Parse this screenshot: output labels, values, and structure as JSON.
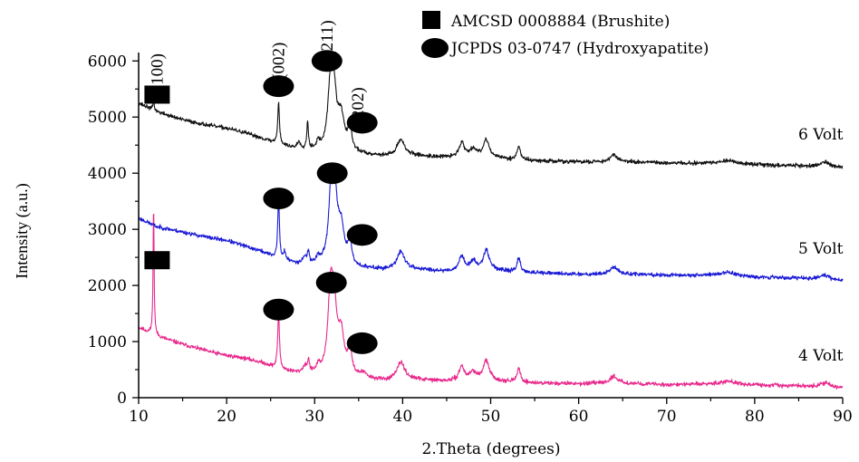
{
  "chart_data": {
    "type": "line",
    "title": "",
    "xlabel": "2.Theta (degrees)",
    "ylabel": "Intensity (a.u.)",
    "xlim": [
      10,
      90
    ],
    "ylim": [
      0,
      6000
    ],
    "x_ticks": [
      "10",
      "20",
      "30",
      "40",
      "50",
      "60",
      "70",
      "80",
      "90"
    ],
    "y_ticks": [
      "0",
      "1000",
      "2000",
      "3000",
      "4000",
      "5000",
      "6000"
    ],
    "legend": {
      "position": "top-right",
      "entries": [
        {
          "marker": "square",
          "label": "AMCSD 0008884 (Brushite)"
        },
        {
          "marker": "circle",
          "label": "JCPDS 03-0747 (Hydroxyapatite)"
        }
      ]
    },
    "series": [
      {
        "name": "4 Volt",
        "color": "#e8288c",
        "baseline": [
          [
            10,
            1250
          ],
          [
            12,
            1100
          ],
          [
            15,
            950
          ],
          [
            18,
            820
          ],
          [
            20,
            750
          ],
          [
            22,
            700
          ],
          [
            24,
            620
          ],
          [
            26,
            500
          ],
          [
            28,
            430
          ],
          [
            30,
            400
          ],
          [
            34,
            350
          ],
          [
            38,
            300
          ],
          [
            40,
            330
          ],
          [
            45,
            290
          ],
          [
            50,
            300
          ],
          [
            55,
            260
          ],
          [
            60,
            250
          ],
          [
            65,
            255
          ],
          [
            70,
            230
          ],
          [
            75,
            240
          ],
          [
            80,
            220
          ],
          [
            85,
            210
          ],
          [
            90,
            170
          ]
        ],
        "peaks": [
          [
            11.7,
            2300,
            0.07
          ],
          [
            25.9,
            1000,
            0.12
          ],
          [
            28.9,
            120,
            0.3
          ],
          [
            29.3,
            200,
            0.12
          ],
          [
            30.4,
            120,
            0.2
          ],
          [
            31.8,
            1350,
            0.35
          ],
          [
            32.2,
            1000,
            0.35
          ],
          [
            33.0,
            700,
            0.45
          ],
          [
            34.0,
            450,
            0.25
          ],
          [
            35.5,
            80,
            0.4
          ],
          [
            39.8,
            300,
            0.5
          ],
          [
            46.7,
            250,
            0.35
          ],
          [
            48.0,
            150,
            0.5
          ],
          [
            49.5,
            350,
            0.4
          ],
          [
            53.2,
            250,
            0.22
          ],
          [
            64.0,
            130,
            0.5
          ],
          [
            77.0,
            60,
            1.2
          ],
          [
            88.0,
            80,
            0.6
          ]
        ],
        "noise": 35,
        "seed": 11
      },
      {
        "name": "5 Volt",
        "color": "#1a1ad6",
        "baseline": [
          [
            10,
            3200
          ],
          [
            12,
            3050
          ],
          [
            15,
            2950
          ],
          [
            18,
            2850
          ],
          [
            20,
            2800
          ],
          [
            22,
            2700
          ],
          [
            24,
            2600
          ],
          [
            26,
            2450
          ],
          [
            28,
            2380
          ],
          [
            30,
            2350
          ],
          [
            34,
            2300
          ],
          [
            38,
            2280
          ],
          [
            40,
            2300
          ],
          [
            45,
            2250
          ],
          [
            50,
            2270
          ],
          [
            55,
            2220
          ],
          [
            60,
            2200
          ],
          [
            65,
            2200
          ],
          [
            70,
            2180
          ],
          [
            75,
            2180
          ],
          [
            80,
            2150
          ],
          [
            85,
            2130
          ],
          [
            90,
            2090
          ]
        ],
        "peaks": [
          [
            25.9,
            1050,
            0.12
          ],
          [
            26.6,
            150,
            0.15
          ],
          [
            28.9,
            120,
            0.3
          ],
          [
            29.3,
            180,
            0.12
          ],
          [
            30.4,
            120,
            0.2
          ],
          [
            31.9,
            1300,
            0.35
          ],
          [
            32.3,
            900,
            0.35
          ],
          [
            33.0,
            650,
            0.45
          ],
          [
            34.0,
            400,
            0.25
          ],
          [
            39.8,
            300,
            0.5
          ],
          [
            46.7,
            250,
            0.35
          ],
          [
            48.0,
            150,
            0.5
          ],
          [
            49.5,
            350,
            0.4
          ],
          [
            53.2,
            250,
            0.22
          ],
          [
            64.0,
            130,
            0.5
          ],
          [
            77.0,
            60,
            1.2
          ],
          [
            88.0,
            80,
            0.6
          ]
        ],
        "noise": 35,
        "seed": 23
      },
      {
        "name": "6 Volt",
        "color": "#111111",
        "baseline": [
          [
            10,
            5250
          ],
          [
            12,
            5100
          ],
          [
            15,
            4950
          ],
          [
            18,
            4850
          ],
          [
            20,
            4800
          ],
          [
            22,
            4720
          ],
          [
            24,
            4620
          ],
          [
            26,
            4500
          ],
          [
            28,
            4430
          ],
          [
            30,
            4400
          ],
          [
            34,
            4350
          ],
          [
            38,
            4300
          ],
          [
            40,
            4320
          ],
          [
            45,
            4280
          ],
          [
            50,
            4270
          ],
          [
            55,
            4220
          ],
          [
            60,
            4200
          ],
          [
            65,
            4200
          ],
          [
            70,
            4180
          ],
          [
            75,
            4170
          ],
          [
            80,
            4150
          ],
          [
            85,
            4130
          ],
          [
            90,
            4100
          ]
        ],
        "peaks": [
          [
            11.7,
            150,
            0.1
          ],
          [
            25.9,
            750,
            0.12
          ],
          [
            28.2,
            120,
            0.2
          ],
          [
            29.2,
            500,
            0.1
          ],
          [
            30.4,
            120,
            0.2
          ],
          [
            31.8,
            1100,
            0.35
          ],
          [
            32.2,
            850,
            0.35
          ],
          [
            33.0,
            600,
            0.45
          ],
          [
            34.0,
            400,
            0.25
          ],
          [
            39.8,
            280,
            0.5
          ],
          [
            46.7,
            260,
            0.35
          ],
          [
            48.0,
            150,
            0.5
          ],
          [
            49.5,
            320,
            0.4
          ],
          [
            53.2,
            240,
            0.22
          ],
          [
            64.0,
            130,
            0.5
          ],
          [
            77.0,
            60,
            1.2
          ],
          [
            88.0,
            90,
            0.6
          ]
        ],
        "noise": 35,
        "seed": 37
      }
    ],
    "series_labels": [
      {
        "text": "6 Volt",
        "x": 87.5,
        "y": 4600
      },
      {
        "text": "5 Volt",
        "x": 87.5,
        "y": 2570
      },
      {
        "text": "4 Volt",
        "x": 87.5,
        "y": 660
      }
    ],
    "markers": [
      {
        "shape": "square",
        "x": 12.1,
        "y": 5400
      },
      {
        "shape": "square",
        "x": 12.1,
        "y": 2450
      },
      {
        "shape": "circle",
        "x": 25.9,
        "y": 5550
      },
      {
        "shape": "circle",
        "x": 31.4,
        "y": 6000
      },
      {
        "shape": "circle",
        "x": 35.4,
        "y": 4900
      },
      {
        "shape": "circle",
        "x": 25.9,
        "y": 3550
      },
      {
        "shape": "circle",
        "x": 32.0,
        "y": 4000
      },
      {
        "shape": "circle",
        "x": 35.4,
        "y": 2900
      },
      {
        "shape": "circle",
        "x": 25.9,
        "y": 1570
      },
      {
        "shape": "circle",
        "x": 31.9,
        "y": 2050
      },
      {
        "shape": "circle",
        "x": 35.4,
        "y": 970
      }
    ],
    "hkl_labels": [
      {
        "text": "(100)",
        "x": 12.1,
        "y": 5800
      },
      {
        "text": "(002)",
        "x": 25.9,
        "y": 6000
      },
      {
        "text": "(211)",
        "x": 31.4,
        "y": 6400
      },
      {
        "text": "(202)",
        "x": 34.9,
        "y": 5200
      }
    ]
  }
}
